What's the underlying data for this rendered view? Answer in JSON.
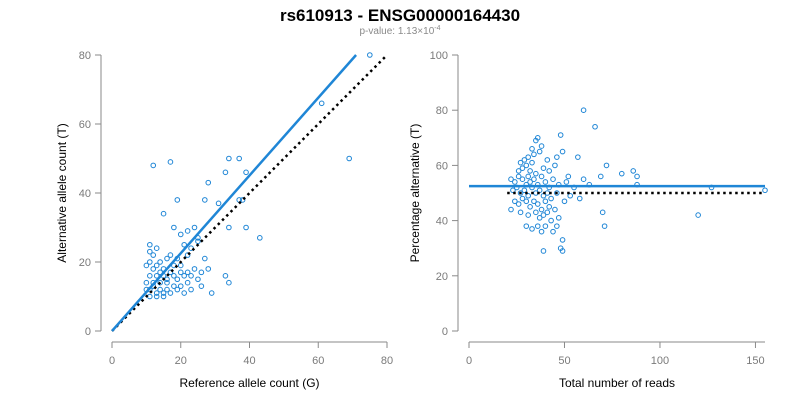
{
  "title": "rs610913 - ENSG00000164430",
  "subtitle": {
    "prefix": "p-value: 1.13×10",
    "exponent": "-4"
  },
  "colors": {
    "points": "#1f86d6",
    "fit_line": "#1f86d6",
    "reference_line": "#000000",
    "axes": "#8a8a8a"
  },
  "chart_data": [
    {
      "type": "scatter",
      "title": "",
      "xlabel": "Reference allele count (G)",
      "ylabel": "Alternative allele count (T)",
      "xlim": [
        0,
        80
      ],
      "ylim": [
        0,
        80
      ],
      "xticks": [
        "0",
        "20",
        "40",
        "60",
        "80"
      ],
      "yticks": [
        "0",
        "20",
        "40",
        "60",
        "80"
      ],
      "series": [
        {
          "points": [
            [
              75,
              80
            ],
            [
              61,
              66
            ],
            [
              69,
              50
            ],
            [
              12,
              48
            ],
            [
              17,
              49
            ],
            [
              34,
              50
            ],
            [
              37,
              50
            ],
            [
              39,
              46
            ],
            [
              33,
              46
            ],
            [
              37,
              38
            ],
            [
              38,
              38
            ],
            [
              28,
              43
            ],
            [
              27,
              38
            ],
            [
              31,
              37
            ],
            [
              15,
              34
            ],
            [
              19,
              38
            ],
            [
              39,
              30
            ],
            [
              43,
              27
            ],
            [
              34,
              30
            ],
            [
              18,
              30
            ],
            [
              20,
              28
            ],
            [
              25,
              27
            ],
            [
              24,
              30
            ],
            [
              22,
              29
            ],
            [
              11,
              25
            ],
            [
              13,
              24
            ],
            [
              17,
              22
            ],
            [
              21,
              25
            ],
            [
              22,
              22
            ],
            [
              23,
              24
            ],
            [
              25,
              26
            ],
            [
              16,
              21
            ],
            [
              11,
              20
            ],
            [
              13,
              19
            ],
            [
              18,
              19
            ],
            [
              19,
              21
            ],
            [
              12,
              18
            ],
            [
              14,
              17
            ],
            [
              15,
              18
            ],
            [
              17,
              17
            ],
            [
              20,
              17
            ],
            [
              22,
              17
            ],
            [
              24,
              18
            ],
            [
              26,
              17
            ],
            [
              28,
              18
            ],
            [
              11,
              16
            ],
            [
              13,
              16
            ],
            [
              15,
              16
            ],
            [
              16,
              15
            ],
            [
              18,
              16
            ],
            [
              19,
              15
            ],
            [
              21,
              16
            ],
            [
              23,
              16
            ],
            [
              10,
              14
            ],
            [
              12,
              14
            ],
            [
              14,
              14
            ],
            [
              16,
              14
            ],
            [
              18,
              13
            ],
            [
              20,
              13
            ],
            [
              22,
              14
            ],
            [
              25,
              15
            ],
            [
              10,
              12
            ],
            [
              11,
              12
            ],
            [
              12,
              13
            ],
            [
              13,
              11
            ],
            [
              14,
              12
            ],
            [
              15,
              11
            ],
            [
              16,
              12
            ],
            [
              17,
              11
            ],
            [
              19,
              12
            ],
            [
              21,
              11
            ],
            [
              23,
              12
            ],
            [
              26,
              13
            ],
            [
              29,
              11
            ],
            [
              33,
              16
            ],
            [
              34,
              14
            ],
            [
              11,
              10
            ],
            [
              13,
              10
            ],
            [
              15,
              10
            ],
            [
              12,
              22
            ],
            [
              11,
              23
            ],
            [
              10,
              19
            ],
            [
              27,
              21
            ],
            [
              20,
              19
            ],
            [
              14,
              20
            ]
          ]
        }
      ],
      "fit_line": {
        "x": [
          0,
          71
        ],
        "y": [
          0,
          80
        ]
      },
      "reference_line": {
        "x": [
          0,
          80
        ],
        "y": [
          0,
          80
        ]
      }
    },
    {
      "type": "scatter",
      "title": "",
      "xlabel": "Total number of reads",
      "ylabel": "Percentage alternative (T)",
      "xlim": [
        0,
        155
      ],
      "ylim": [
        0,
        100
      ],
      "xticks": [
        "0",
        "50",
        "100",
        "150"
      ],
      "yticks": [
        "0",
        "20",
        "40",
        "60",
        "80",
        "100"
      ],
      "series": [
        {
          "points": [
            [
              60,
              80
            ],
            [
              66,
              74
            ],
            [
              48,
              71
            ],
            [
              36,
              70
            ],
            [
              35,
              69
            ],
            [
              38,
              67
            ],
            [
              29,
              62
            ],
            [
              33,
              66
            ],
            [
              27,
              61
            ],
            [
              31,
              63
            ],
            [
              34,
              64
            ],
            [
              37,
              65
            ],
            [
              41,
              62
            ],
            [
              46,
              63
            ],
            [
              49,
              65
            ],
            [
              57,
              63
            ],
            [
              26,
              58
            ],
            [
              28,
              59
            ],
            [
              30,
              60
            ],
            [
              32,
              58
            ],
            [
              33,
              61
            ],
            [
              35,
              57
            ],
            [
              39,
              59
            ],
            [
              42,
              58
            ],
            [
              45,
              60
            ],
            [
              52,
              56
            ],
            [
              60,
              55
            ],
            [
              63,
              53
            ],
            [
              69,
              56
            ],
            [
              72,
              60
            ],
            [
              80,
              57
            ],
            [
              86,
              58
            ],
            [
              88,
              56
            ],
            [
              22,
              55
            ],
            [
              24,
              54
            ],
            [
              26,
              56
            ],
            [
              28,
              55
            ],
            [
              30,
              53
            ],
            [
              31,
              56
            ],
            [
              32,
              54
            ],
            [
              34,
              55
            ],
            [
              36,
              53
            ],
            [
              38,
              56
            ],
            [
              40,
              54
            ],
            [
              42,
              52
            ],
            [
              44,
              55
            ],
            [
              47,
              53
            ],
            [
              51,
              54
            ],
            [
              55,
              52
            ],
            [
              23,
              51
            ],
            [
              25,
              52
            ],
            [
              27,
              50
            ],
            [
              29,
              51
            ],
            [
              31,
              49
            ],
            [
              33,
              52
            ],
            [
              35,
              50
            ],
            [
              37,
              51
            ],
            [
              39,
              49
            ],
            [
              41,
              50
            ],
            [
              43,
              48
            ],
            [
              46,
              50
            ],
            [
              50,
              47
            ],
            [
              53,
              49
            ],
            [
              58,
              48
            ],
            [
              24,
              47
            ],
            [
              26,
              46
            ],
            [
              28,
              48
            ],
            [
              30,
              47
            ],
            [
              32,
              45
            ],
            [
              34,
              47
            ],
            [
              36,
              46
            ],
            [
              38,
              44
            ],
            [
              40,
              47
            ],
            [
              42,
              45
            ],
            [
              45,
              44
            ],
            [
              22,
              44
            ],
            [
              27,
              43
            ],
            [
              31,
              42
            ],
            [
              35,
              43
            ],
            [
              37,
              41
            ],
            [
              39,
              42
            ],
            [
              41,
              43
            ],
            [
              43,
              40
            ],
            [
              47,
              41
            ],
            [
              30,
              38
            ],
            [
              33,
              37
            ],
            [
              36,
              38
            ],
            [
              38,
              36
            ],
            [
              40,
              38
            ],
            [
              44,
              36
            ],
            [
              46,
              38
            ],
            [
              49,
              33
            ],
            [
              48,
              30
            ],
            [
              49,
              29
            ],
            [
              39,
              29
            ],
            [
              70,
              43
            ],
            [
              71,
              38
            ],
            [
              88,
              53
            ],
            [
              120,
              42
            ],
            [
              127,
              52
            ],
            [
              155,
              51
            ]
          ]
        }
      ],
      "fit_line": {
        "x": [
          0,
          155
        ],
        "y": [
          52.5,
          52.5
        ]
      },
      "reference_line": {
        "x": [
          20,
          155
        ],
        "y": [
          50,
          50
        ]
      }
    }
  ]
}
